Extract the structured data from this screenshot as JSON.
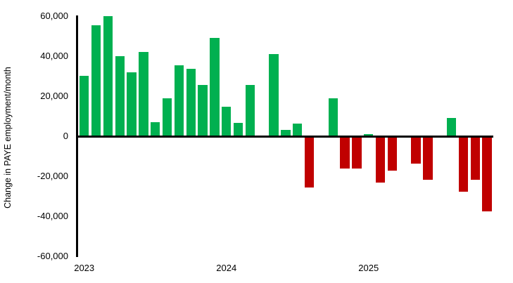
{
  "chart_data": {
    "type": "bar",
    "title": "",
    "xlabel": "",
    "ylabel": "Change in PAYE employment/month",
    "ylim": [
      -60000,
      60000
    ],
    "grid": false,
    "legend_position": "none",
    "colors": {
      "positive_bar": "#00B050",
      "negative_bar": "#C00000",
      "axis": "#000000",
      "background": "#FFFFFF"
    },
    "y_ticks": [
      {
        "label": "60,000",
        "value": 60000
      },
      {
        "label": "40,000",
        "value": 40000
      },
      {
        "label": "20,000",
        "value": 20000
      },
      {
        "label": "0",
        "value": 0
      },
      {
        "label": "-20,000",
        "value": -20000
      },
      {
        "label": "-40,000",
        "value": -40000
      },
      {
        "label": "-60,000",
        "value": -60000
      }
    ],
    "x_year_labels": [
      {
        "label": "2023",
        "month_index": 0
      },
      {
        "label": "2024",
        "month_index": 12
      },
      {
        "label": "2025",
        "month_index": 24
      }
    ],
    "series": [
      {
        "name": "Change in PAYE employment/month",
        "x": [
          "Jan 2023",
          "Feb 2023",
          "Mar 2023",
          "Apr 2023",
          "May 2023",
          "Jun 2023",
          "Jul 2023",
          "Aug 2023",
          "Sep 2023",
          "Oct 2023",
          "Nov 2023",
          "Dec 2023",
          "Jan 2024",
          "Feb 2024",
          "Mar 2024",
          "Apr 2024",
          "May 2024",
          "Jun 2024",
          "Jul 2024",
          "Aug 2024",
          "Sep 2024",
          "Oct 2024",
          "Nov 2024",
          "Dec 2024",
          "Jan 2025",
          "Feb 2025",
          "Mar 2025",
          "Apr 2025",
          "May 2025",
          "Jun 2025",
          "Jul 2025",
          "Aug 2025",
          "Sep 2025",
          "Oct 2025",
          "Nov 2025"
        ],
        "values": [
          30000,
          55500,
          60000,
          40000,
          32000,
          42000,
          7000,
          19000,
          35500,
          33500,
          25500,
          49000,
          14500,
          6500,
          25500,
          -1000,
          41000,
          3000,
          6000,
          -26000,
          0,
          19000,
          -16500,
          -16500,
          1000,
          -23500,
          -17500,
          0,
          -14000,
          -22000,
          0,
          9000,
          -28000,
          -22000,
          -38000
        ]
      }
    ]
  }
}
